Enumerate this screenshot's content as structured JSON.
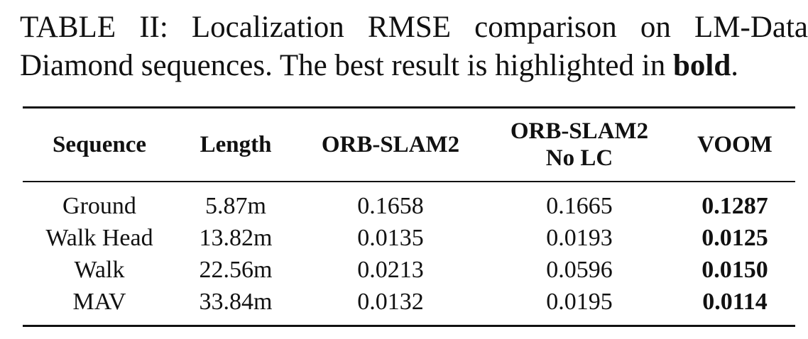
{
  "caption": {
    "line1": "TABLE II: Localization RMSE comparison on LM-Data",
    "line2_prefix": "Diamond sequences. The best result is highlighted in ",
    "line2_bold": "bold",
    "line2_suffix": "."
  },
  "table": {
    "headers": {
      "sequence": "Sequence",
      "length": "Length",
      "orb_slam2": "ORB-SLAM2",
      "orb_slam2_nolc_line1": "ORB-SLAM2",
      "orb_slam2_nolc_line2": "No LC",
      "voom": "VOOM"
    },
    "rows": [
      {
        "sequence": "Ground",
        "length": "5.87m",
        "orb_slam2": "0.1658",
        "orb_slam2_nolc": "0.1665",
        "voom": "0.1287"
      },
      {
        "sequence": "Walk Head",
        "length": "13.82m",
        "orb_slam2": "0.0135",
        "orb_slam2_nolc": "0.0193",
        "voom": "0.0125"
      },
      {
        "sequence": "Walk",
        "length": "22.56m",
        "orb_slam2": "0.0213",
        "orb_slam2_nolc": "0.0596",
        "voom": "0.0150"
      },
      {
        "sequence": "MAV",
        "length": "33.84m",
        "orb_slam2": "0.0132",
        "orb_slam2_nolc": "0.0195",
        "voom": "0.0114"
      }
    ]
  }
}
